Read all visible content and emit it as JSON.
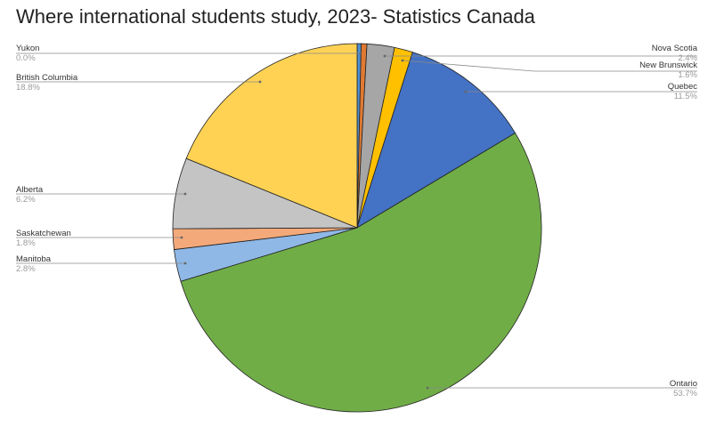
{
  "chart_data": {
    "type": "pie",
    "title": "Where international students study, 2023- Statistics Canada",
    "slices": [
      {
        "label": "Yukon",
        "pct_label": "0.0%",
        "value": 0.0,
        "color": "#4f90d1"
      },
      {
        "label": "Nova Scotia",
        "pct_label": "2.4%",
        "value": 2.4,
        "color": "#a6a6a6"
      },
      {
        "label": "New Brunswick",
        "pct_label": "1.6%",
        "value": 1.6,
        "color": "#ffc000"
      },
      {
        "label": "Quebec",
        "pct_label": "11.5%",
        "value": 11.5,
        "color": "#4472c4"
      },
      {
        "label": "Ontario",
        "pct_label": "53.7%",
        "value": 53.7,
        "color": "#70ad47"
      },
      {
        "label": "Manitoba",
        "pct_label": "2.8%",
        "value": 2.8,
        "color": "#8fb8e6"
      },
      {
        "label": "Saskatchewan",
        "pct_label": "1.8%",
        "value": 1.8,
        "color": "#f4a97a"
      },
      {
        "label": "Alberta",
        "pct_label": "6.2%",
        "value": 6.2,
        "color": "#c4c4c4"
      },
      {
        "label": "British Columbia",
        "pct_label": "18.8%",
        "value": 18.8,
        "color": "#ffd254"
      }
    ],
    "extra_slices": [
      {
        "value": 0.5,
        "color": "#e07a32"
      }
    ],
    "legend": "callout-labels"
  }
}
